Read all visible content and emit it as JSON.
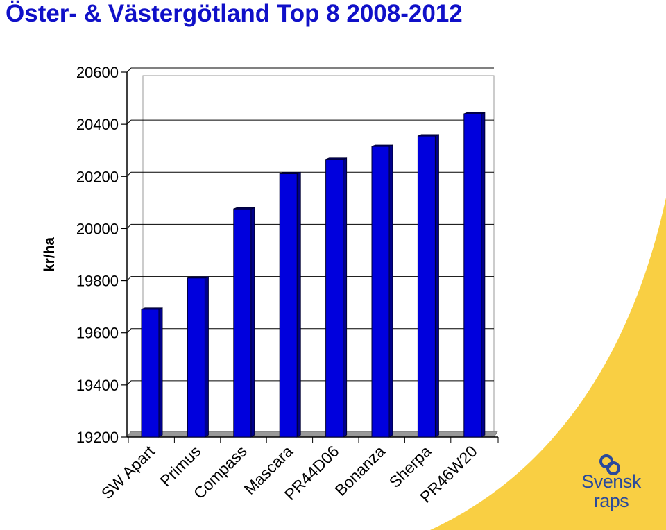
{
  "title": "Öster- & Västergötland Top 8 2008-2012",
  "logo": {
    "line1": "Svensk",
    "line2": "raps"
  },
  "colors": {
    "title": "#1010c8",
    "bar": "#0000dd",
    "bar_dark": "#00008a",
    "swoosh": "#f9cf43",
    "logo": "#2a4a9b"
  },
  "chart_data": {
    "type": "bar",
    "ylabel": "kr/ha",
    "xlabel": "",
    "ylim": [
      19200,
      20600
    ],
    "yticks": [
      20600,
      20400,
      20200,
      20000,
      19800,
      19600,
      19400,
      19200
    ],
    "categories": [
      "SW Apart",
      "Primus",
      "Compass",
      "Mascara",
      "PR44D06",
      "Bonanza",
      "Sherpa",
      "PR46W20"
    ],
    "values": [
      19690,
      19810,
      20075,
      20210,
      20265,
      20315,
      20355,
      20440
    ],
    "grid": true,
    "legend": "none"
  }
}
